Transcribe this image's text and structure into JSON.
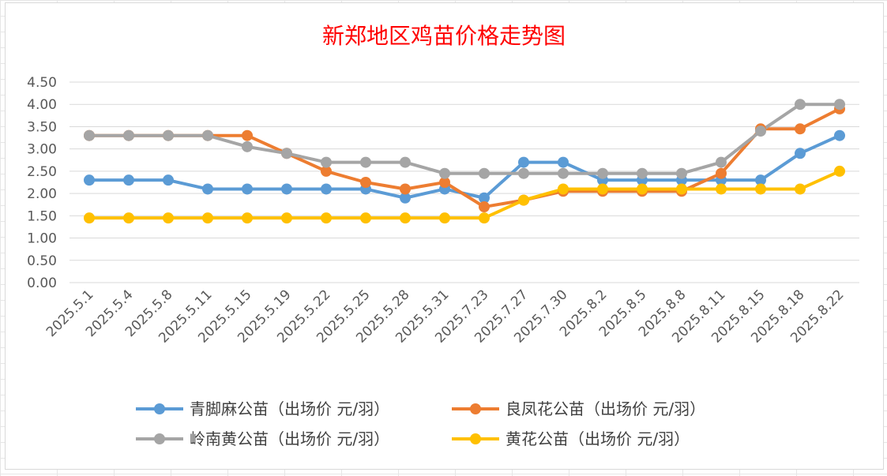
{
  "chart_data": {
    "type": "line",
    "title": "新郑地区鸡苗价格走势图",
    "title_color": "#ff0000",
    "xlabel": "",
    "ylabel": "",
    "categories": [
      "2025.5.1",
      "2025.5.4",
      "2025.5.8",
      "2025.5.11",
      "2025.5.15",
      "2025.5.19",
      "2025.5.22",
      "2025.5.25",
      "2025.5.28",
      "2025.5.31",
      "2025.7.23",
      "2025.7.27",
      "2025.7.30",
      "2025.8.2",
      "2025.8.5",
      "2025.8.8",
      "2025.8.11",
      "2025.8.15",
      "2025.8.18",
      "2025.8.22"
    ],
    "ylim": [
      0,
      4.5
    ],
    "ytick_labels": [
      "0.00",
      "0.50",
      "1.00",
      "1.50",
      "2.00",
      "2.50",
      "3.00",
      "3.50",
      "4.00",
      "4.50"
    ],
    "grid": true,
    "legend_position": "bottom",
    "series": [
      {
        "name": "青脚麻公苗（出场价 元/羽）",
        "color": "#5b9bd5",
        "values": [
          2.3,
          2.3,
          2.3,
          2.1,
          2.1,
          2.1,
          2.1,
          2.1,
          1.9,
          2.1,
          1.9,
          2.7,
          2.7,
          2.3,
          2.3,
          2.3,
          2.3,
          2.3,
          2.9,
          3.3
        ]
      },
      {
        "name": "良凤花公苗（出场价 元/羽）",
        "color": "#ed7d31",
        "values": [
          3.3,
          3.3,
          3.3,
          3.3,
          3.3,
          2.9,
          2.5,
          2.25,
          2.1,
          2.25,
          1.7,
          1.85,
          2.05,
          2.05,
          2.05,
          2.05,
          2.45,
          3.45,
          3.45,
          3.9
        ]
      },
      {
        "name": "岭南黄公苗（出场价 元/羽）",
        "color": "#a5a5a5",
        "values": [
          3.3,
          3.3,
          3.3,
          3.3,
          3.05,
          2.9,
          2.7,
          2.7,
          2.7,
          2.45,
          2.45,
          2.45,
          2.45,
          2.45,
          2.45,
          2.45,
          2.7,
          3.4,
          4.0,
          4.0
        ]
      },
      {
        "name": "黄花公苗（出场价 元/羽）",
        "color": "#ffc000",
        "values": [
          1.45,
          1.45,
          1.45,
          1.45,
          1.45,
          1.45,
          1.45,
          1.45,
          1.45,
          1.45,
          1.45,
          1.85,
          2.1,
          2.1,
          2.1,
          2.1,
          2.1,
          2.1,
          2.1,
          2.5
        ]
      }
    ]
  }
}
